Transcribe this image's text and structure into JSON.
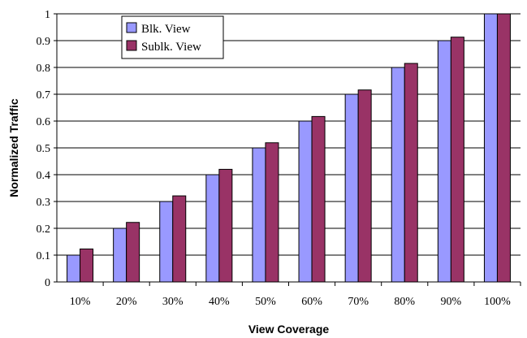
{
  "chart_data": {
    "type": "bar",
    "categories": [
      "10%",
      "20%",
      "30%",
      "40%",
      "50%",
      "60%",
      "70%",
      "80%",
      "90%",
      "100%"
    ],
    "series": [
      {
        "name": "Blk. View",
        "color": "#9999ff",
        "values": [
          0.1,
          0.2,
          0.3,
          0.4,
          0.5,
          0.6,
          0.7,
          0.8,
          0.9,
          1.0
        ]
      },
      {
        "name": "Sublk. View",
        "color": "#993366",
        "values": [
          0.123,
          0.222,
          0.321,
          0.42,
          0.519,
          0.617,
          0.716,
          0.815,
          0.913,
          1.0
        ]
      }
    ],
    "xlabel": "View Coverage",
    "ylabel": "Normalized Traffic",
    "ylim": [
      0,
      1
    ],
    "yticks": [
      "0",
      "0.1",
      "0.2",
      "0.3",
      "0.4",
      "0.5",
      "0.6",
      "0.7",
      "0.8",
      "0.9",
      "1"
    ],
    "grid": true,
    "legend": "top-left"
  }
}
